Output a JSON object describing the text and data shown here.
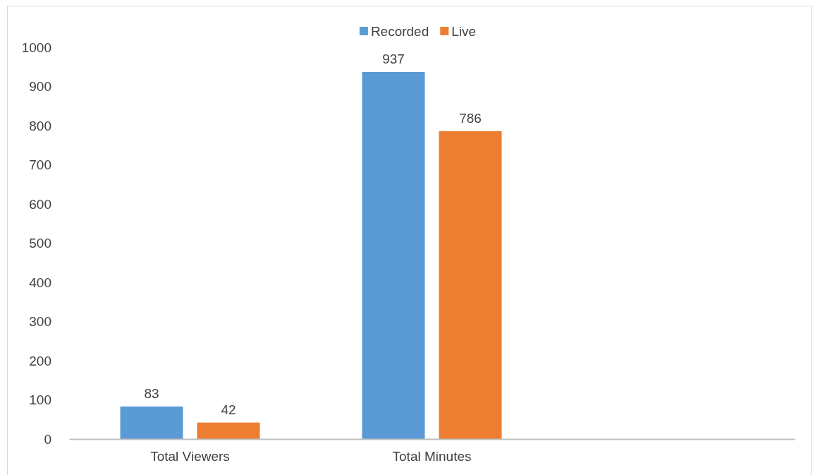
{
  "chart_data": {
    "type": "bar",
    "categories": [
      "Total Viewers",
      "Total Minutes",
      null
    ],
    "series": [
      {
        "name": "Recorded",
        "color": "#5b9bd5",
        "values": [
          83,
          937,
          null
        ]
      },
      {
        "name": "Live",
        "color": "#ed7d31",
        "values": [
          42,
          786,
          null
        ]
      }
    ],
    "ylim": [
      0,
      1000
    ],
    "yticks": [
      0,
      100,
      200,
      300,
      400,
      500,
      600,
      700,
      800,
      900,
      1000
    ],
    "grid": false,
    "legend": "top",
    "data_labels": true
  }
}
